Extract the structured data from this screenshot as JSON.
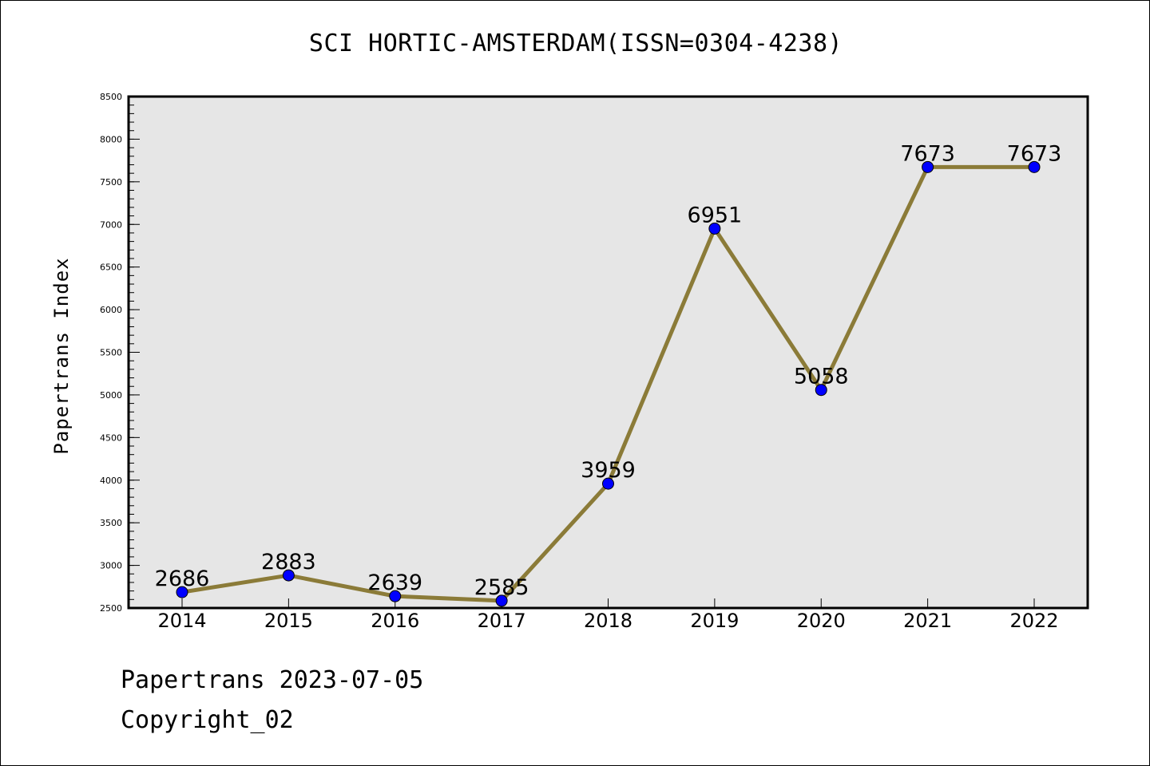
{
  "chart_data": {
    "type": "line",
    "title": "SCI HORTIC-AMSTERDAM(ISSN=0304-4238)",
    "ylabel": "Papertrans Index",
    "xlabel": "",
    "x": [
      "2014",
      "2015",
      "2016",
      "2017",
      "2018",
      "2019",
      "2020",
      "2021",
      "2022"
    ],
    "series": [
      {
        "values": [
          2686,
          2883,
          2639,
          2585,
          3959,
          6951,
          5058,
          7673,
          7673
        ]
      }
    ],
    "ylim": [
      2500,
      8500
    ],
    "yticks": [
      2500,
      3000,
      3500,
      4000,
      4500,
      5000,
      5500,
      6000,
      6500,
      7000,
      7500,
      8000,
      8500
    ],
    "grid": false,
    "colors": {
      "line": "#8b7b38",
      "marker": "#0000ff",
      "plot_background": "#e6e6e6"
    }
  },
  "footer": {
    "date_text": "Papertrans 2023-07-05",
    "copyright_text": "Copyright_02"
  }
}
